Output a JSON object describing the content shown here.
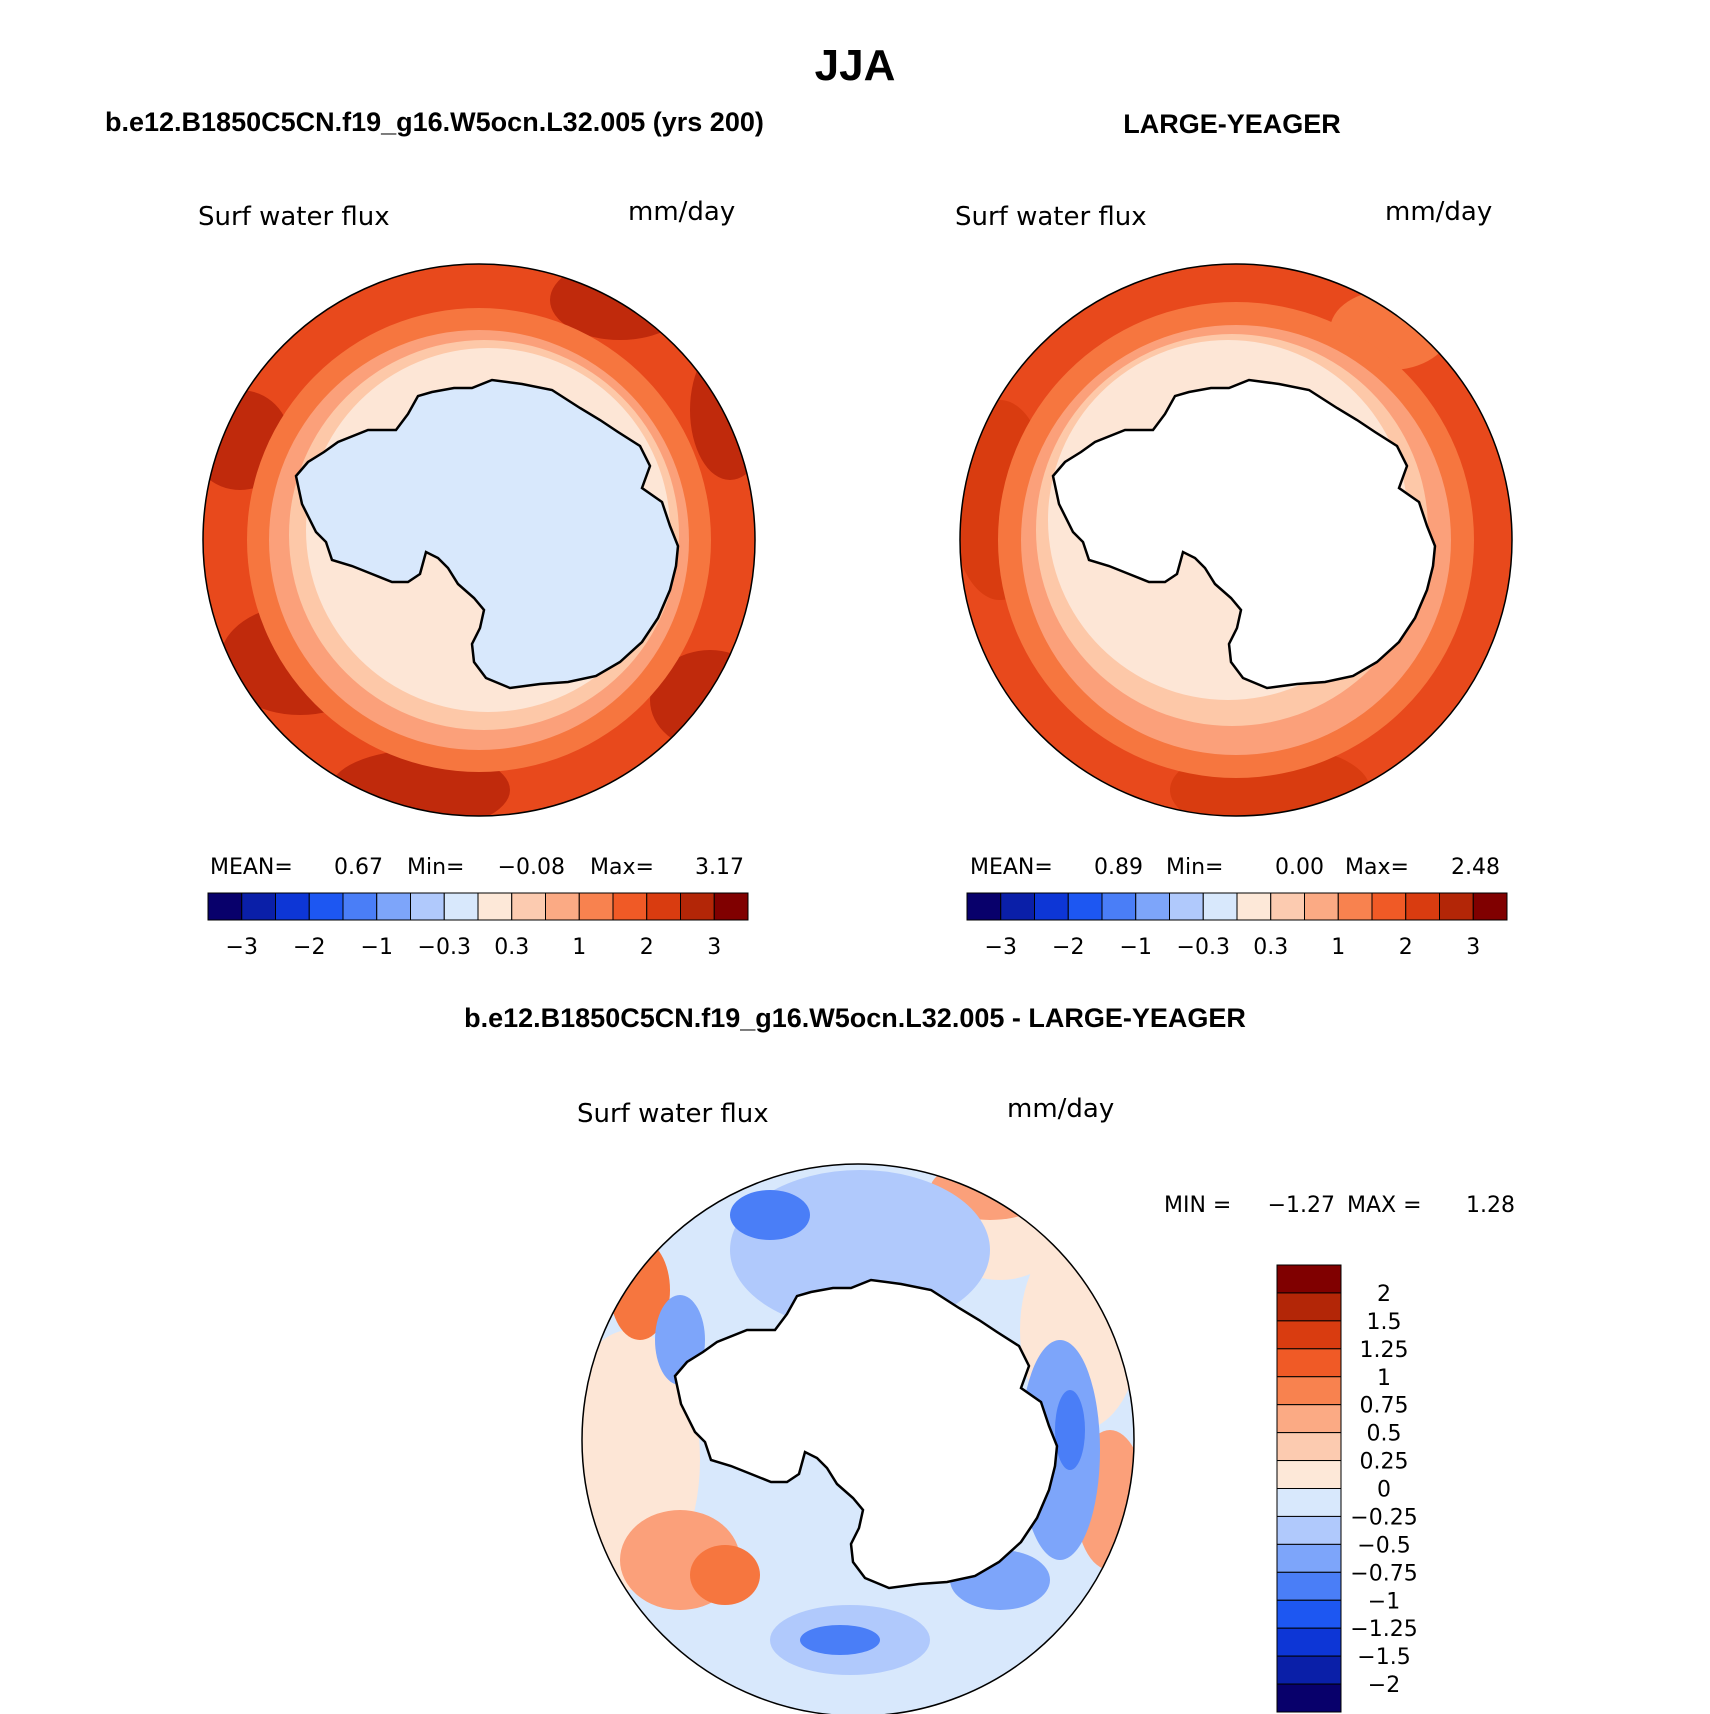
{
  "figure": {
    "title": "JJA",
    "left_case": "b.e12.B1850C5CN.f19_g16.W5ocn.L32.005 (yrs 200)",
    "right_case": "LARGE-YEAGER",
    "diff_case": "b.e12.B1850C5CN.f19_g16.W5ocn.L32.005 - LARGE-YEAGER"
  },
  "panels": [
    {
      "id": "model",
      "variable": "Surf water flux",
      "units": "mm/day",
      "stats": {
        "mean_label": "MEAN=",
        "mean": "0.67",
        "min_label": "Min=",
        "min": "−0.08",
        "max_label": "Max=",
        "max": "3.17"
      }
    },
    {
      "id": "obs",
      "variable": "Surf water flux",
      "units": "mm/day",
      "stats": {
        "mean_label": "MEAN=",
        "mean": "0.89",
        "min_label": "Min=",
        "min": "0.00",
        "max_label": "Max=",
        "max": "2.48"
      }
    }
  ],
  "diff_panel": {
    "variable": "Surf water flux",
    "units": "mm/day",
    "min_label": "MIN =",
    "min": "−1.27",
    "max_label": "MAX =",
    "max": "1.28"
  },
  "horizontal_colorbar": {
    "colors": [
      "#08006b",
      "#0a1fa8",
      "#0d36d6",
      "#1d57f2",
      "#4a7ef7",
      "#7da5fa",
      "#b0c9fc",
      "#d8e8fc",
      "#fde8d8",
      "#fccbb0",
      "#fbaa84",
      "#f8824f",
      "#f05a26",
      "#d93c10",
      "#b32607",
      "#800000"
    ],
    "tick_labels": [
      "−3",
      "−2",
      "−1",
      "−0.3",
      "0.3",
      "1",
      "2",
      "3"
    ]
  },
  "vertical_colorbar": {
    "colors": [
      "#800000",
      "#b32607",
      "#d93c10",
      "#f05a26",
      "#f8824f",
      "#fbaa84",
      "#fccbb0",
      "#fde8d8",
      "#d8e8fc",
      "#b0c9fc",
      "#7da5fa",
      "#4a7ef7",
      "#1d57f2",
      "#0d36d6",
      "#0a1fa8",
      "#08006b"
    ],
    "tick_labels": [
      "2",
      "1.5",
      "1.25",
      "1",
      "0.75",
      "0.5",
      "0.25",
      "0",
      "−0.25",
      "−0.5",
      "−0.75",
      "−1",
      "−1.25",
      "−1.5",
      "−2"
    ]
  },
  "map_palette": {
    "dark_red": "#c02a0c",
    "red": "#e8491c",
    "orange": "#f6763f",
    "salmon": "#fba07a",
    "peach": "#fdc8a8",
    "light_peach": "#fde6d6",
    "light_blue": "#d8e8fc",
    "blue_light": "#b0c9fc",
    "blue": "#7da5fa",
    "blue_mid": "#4a7ef7",
    "blue_dark": "#1d57f2"
  }
}
